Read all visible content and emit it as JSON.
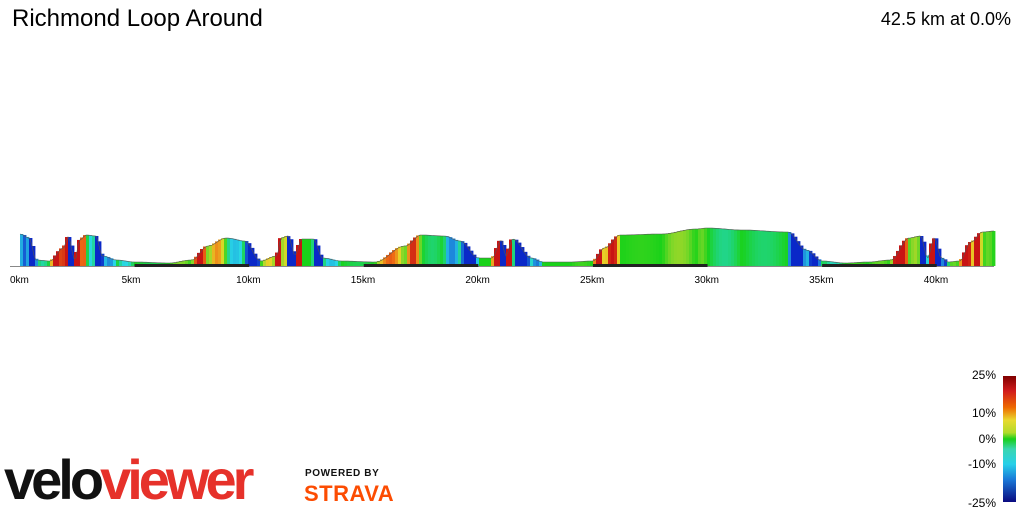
{
  "header": {
    "title": "Richmond Loop Around",
    "summary": "42.5 km at 0.0%"
  },
  "branding": {
    "logo_text_a": "velo",
    "logo_text_b": "viewer",
    "powered_by": "POWERED BY",
    "strava": "STRAVA"
  },
  "colors": {
    "brand_red": "#e6312a",
    "strava_orange": "#fc4c02",
    "baseline": "#222222"
  },
  "chart_data": {
    "type": "area",
    "title": "Richmond Loop Around",
    "subtitle": "42.5 km at 0.0%",
    "xlabel": "",
    "ylabel": "",
    "xlim": [
      0,
      42.5
    ],
    "ylim": [
      0,
      32
    ],
    "grid": false,
    "x_tick_labels": [
      "0km",
      "5km",
      "10km",
      "15km",
      "20km",
      "25km",
      "30km",
      "35km",
      "40km"
    ],
    "x_tick_values": [
      0,
      5,
      10,
      15,
      20,
      25,
      30,
      35,
      40
    ],
    "x": [
      0,
      0.4,
      0.7,
      1.3,
      1.9,
      2.1,
      2.4,
      2.6,
      2.9,
      3.3,
      3.6,
      4.2,
      5.0,
      6.5,
      7.5,
      8.2,
      9.0,
      9.8,
      10.5,
      11.2,
      11.4,
      11.7,
      12.0,
      12.3,
      12.8,
      13.2,
      14.0,
      15.5,
      16.8,
      17.5,
      18.5,
      19.2,
      20.0,
      20.6,
      21.0,
      21.2,
      21.5,
      22.3,
      22.8,
      24.0,
      25.0,
      25.5,
      26.2,
      28.0,
      29.5,
      30.0,
      31.5,
      33.5,
      34.3,
      35.0,
      36.0,
      37.0,
      38.0,
      38.8,
      39.3,
      39.6,
      39.9,
      40.2,
      40.5,
      41.0,
      41.5,
      42.0,
      42.5
    ],
    "elevation": [
      32,
      28,
      6,
      5,
      18,
      29,
      6,
      26,
      31,
      30,
      10,
      6,
      4,
      3,
      6,
      20,
      28,
      25,
      5,
      10,
      28,
      30,
      11,
      27,
      27,
      8,
      5,
      4,
      20,
      31,
      30,
      25,
      8,
      8,
      26,
      10,
      27,
      8,
      4,
      4,
      5,
      18,
      31,
      32,
      37,
      38,
      36,
      34,
      16,
      5,
      3,
      4,
      6,
      28,
      30,
      8,
      28,
      8,
      4,
      5,
      24,
      34,
      35
    ],
    "gradient_colorbar": {
      "labels": [
        "25%",
        "10%",
        "0%",
        "-10%",
        "-25%"
      ],
      "values": [
        25,
        10,
        0,
        -10,
        -25
      ]
    }
  }
}
